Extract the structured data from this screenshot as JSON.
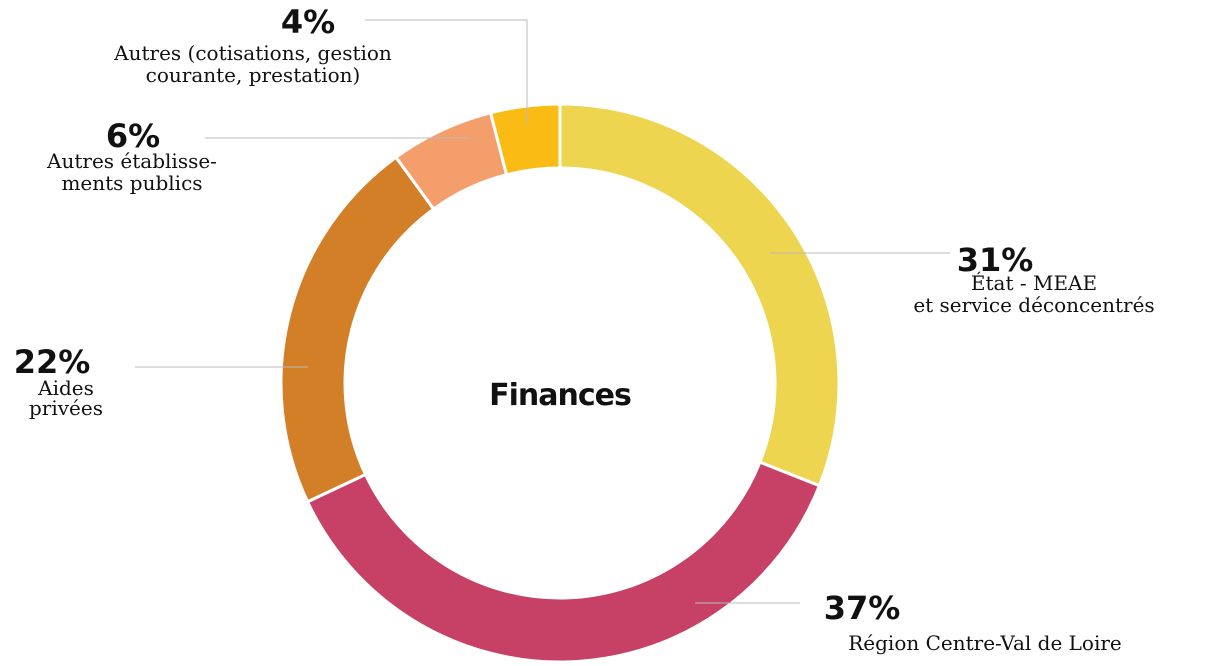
{
  "chart_data": {
    "type": "donut",
    "title": "Finances",
    "categories": [
      [
        "État - MEAE",
        "et service déconcentrés"
      ],
      [
        "Région Centre-Val de Loire"
      ],
      [
        "Aides",
        "privées"
      ],
      [
        "Autres établisse-",
        "ments publics"
      ],
      [
        "Autres (cotisations, gestion",
        "courante, prestation)"
      ]
    ],
    "values": [
      31,
      37,
      22,
      6,
      4
    ],
    "value_labels": [
      "31%",
      "37%",
      "22%",
      "6%",
      "4%"
    ],
    "colors": [
      "#edd54f",
      "#c74066",
      "#d27f28",
      "#f49e6c",
      "#f9bb14"
    ]
  }
}
